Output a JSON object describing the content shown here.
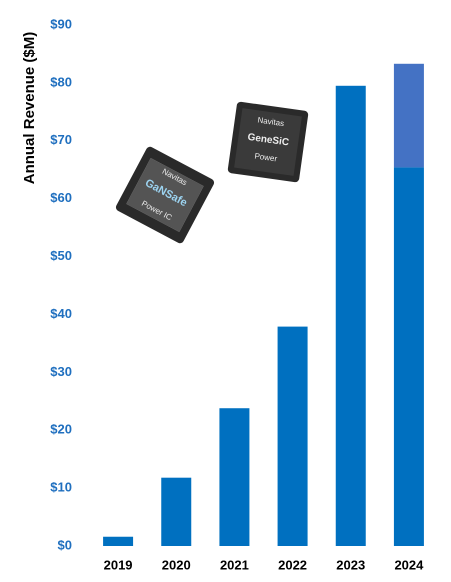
{
  "chart_data": {
    "type": "stacked_bar",
    "y_label": "Annual Revenue ($M)",
    "categories": [
      "2019",
      "2020",
      "2021",
      "2022",
      "2023",
      "2024"
    ],
    "series": [
      {
        "color": "#0070c0",
        "values": [
          1.6,
          11.8,
          23.8,
          37.9,
          79.5,
          65.4
        ]
      },
      {
        "color": "#4472c4",
        "values": [
          null,
          null,
          null,
          null,
          null,
          17.9
        ]
      }
    ],
    "ylim": [
      0,
      90
    ],
    "yticks": [
      {
        "value": 0,
        "label": "$0"
      },
      {
        "value": 10,
        "label": "$10"
      },
      {
        "value": 20,
        "label": "$20"
      },
      {
        "value": 30,
        "label": "$30"
      },
      {
        "value": 40,
        "label": "$40"
      },
      {
        "value": 50,
        "label": "$50"
      },
      {
        "value": 60,
        "label": "$60"
      },
      {
        "value": 70,
        "label": "$70"
      },
      {
        "value": 80,
        "label": "$80"
      },
      {
        "value": 90,
        "label": "$90"
      }
    ],
    "grid": false,
    "images": [
      {
        "labels": [
          "Navitas",
          "GaNSafe",
          "Power IC"
        ]
      },
      {
        "labels": [
          "Navitas",
          "GeneSiC",
          "Power"
        ]
      }
    ]
  }
}
